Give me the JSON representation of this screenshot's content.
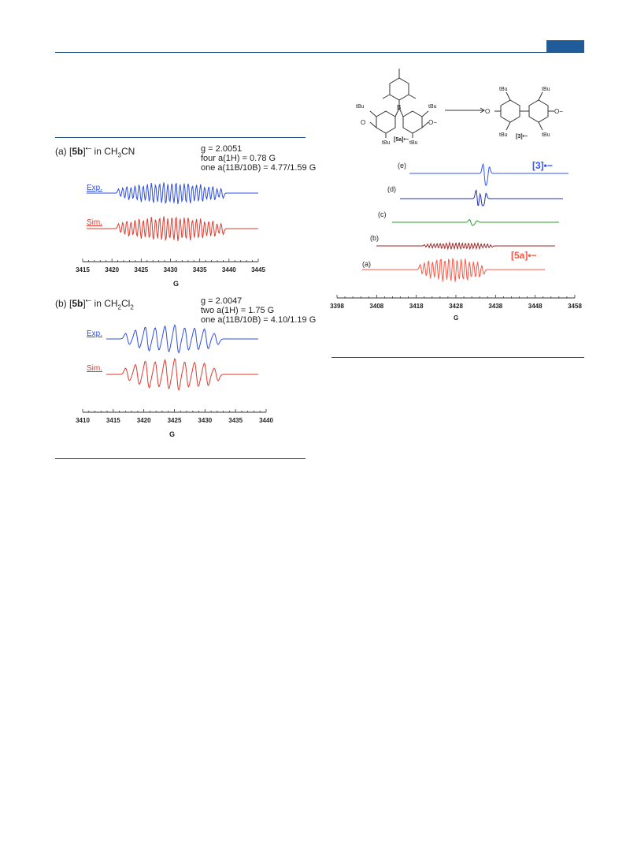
{
  "colors": {
    "rule": "#1f4e79",
    "tab": "#1f5c99",
    "exp": "#2e4de0",
    "sim": "#e03a2e",
    "trace_e": "#3355ff",
    "trace_d": "#2233aa",
    "trace_c": "#2e9a2e",
    "trace_b": "#9b2a2a",
    "trace_a": "#ff5544"
  },
  "panel_a": {
    "title_prefix": "(a) [",
    "species": "5b",
    "charge": "•−",
    "solvent_pre": " in CH",
    "solvent_sub": "3",
    "solvent_post": "CN",
    "params": {
      "g": "g = 2.0051",
      "h_line": "four a(1H) = 0.78 G",
      "b_line": "one a(11B/10B) = 4.77/1.59 G"
    },
    "exp_label": "Exp.",
    "sim_label": "Sim.",
    "xaxis_label": "G",
    "ticks": [
      "3415",
      "3420",
      "3425",
      "3430",
      "3435",
      "3440",
      "3445"
    ]
  },
  "panel_b": {
    "title_prefix": "(b) [",
    "species": "5b",
    "charge": "•−",
    "solvent_pre": " in CH",
    "solvent_sub": "2",
    "solvent_post": "Cl",
    "solvent_sub2": "2",
    "params": {
      "g": "g = 2.0047",
      "h_line": "two a(1H) = 1.75 G",
      "b_line": "one a(11B/10B) = 4.10/1.19 G"
    },
    "exp_label": "Exp.",
    "sim_label": "Sim.",
    "xaxis_label": "G",
    "ticks": [
      "3410",
      "3415",
      "3420",
      "3425",
      "3430",
      "3435",
      "3440"
    ]
  },
  "scheme": {
    "tbu": "tBu",
    "reactant_label": "[5a]•−",
    "product_label": "[3]•−",
    "boron": "B",
    "o_minus": "O−",
    "o_dot": "O"
  },
  "right_plot": {
    "trace_labels": [
      "(e)",
      "(d)",
      "(c)",
      "(b)",
      "(a)"
    ],
    "product_tag": "[3]•−",
    "reactant_tag": "[5a]•−",
    "xaxis_label": "G",
    "ticks": [
      "3398",
      "3408",
      "3418",
      "3428",
      "3438",
      "3448",
      "3458"
    ]
  },
  "chart_data": [
    {
      "type": "line",
      "title": "(a) [5b]•− in CH3CN",
      "xlabel": "G",
      "xlim": [
        3415,
        3445
      ],
      "series": [
        {
          "name": "Exp."
        },
        {
          "name": "Sim."
        }
      ],
      "annotations": [
        "g = 2.0051",
        "four a(1H) = 0.78 G",
        "one a(11B/10B) = 4.77/1.59 G"
      ]
    },
    {
      "type": "line",
      "title": "(b) [5b]•− in CH2Cl2",
      "xlabel": "G",
      "xlim": [
        3410,
        3440
      ],
      "series": [
        {
          "name": "Exp."
        },
        {
          "name": "Sim."
        }
      ],
      "annotations": [
        "g = 2.0047",
        "two a(1H) = 1.75 G",
        "one a(11B/10B) = 4.10/1.19 G"
      ]
    },
    {
      "type": "line",
      "xlabel": "G",
      "xlim": [
        3398,
        3458
      ],
      "series": [
        {
          "name": "(e)"
        },
        {
          "name": "(d)"
        },
        {
          "name": "(c)"
        },
        {
          "name": "(b)"
        },
        {
          "name": "(a)"
        }
      ],
      "annotations": [
        "[3]•−",
        "[5a]•−"
      ]
    }
  ]
}
